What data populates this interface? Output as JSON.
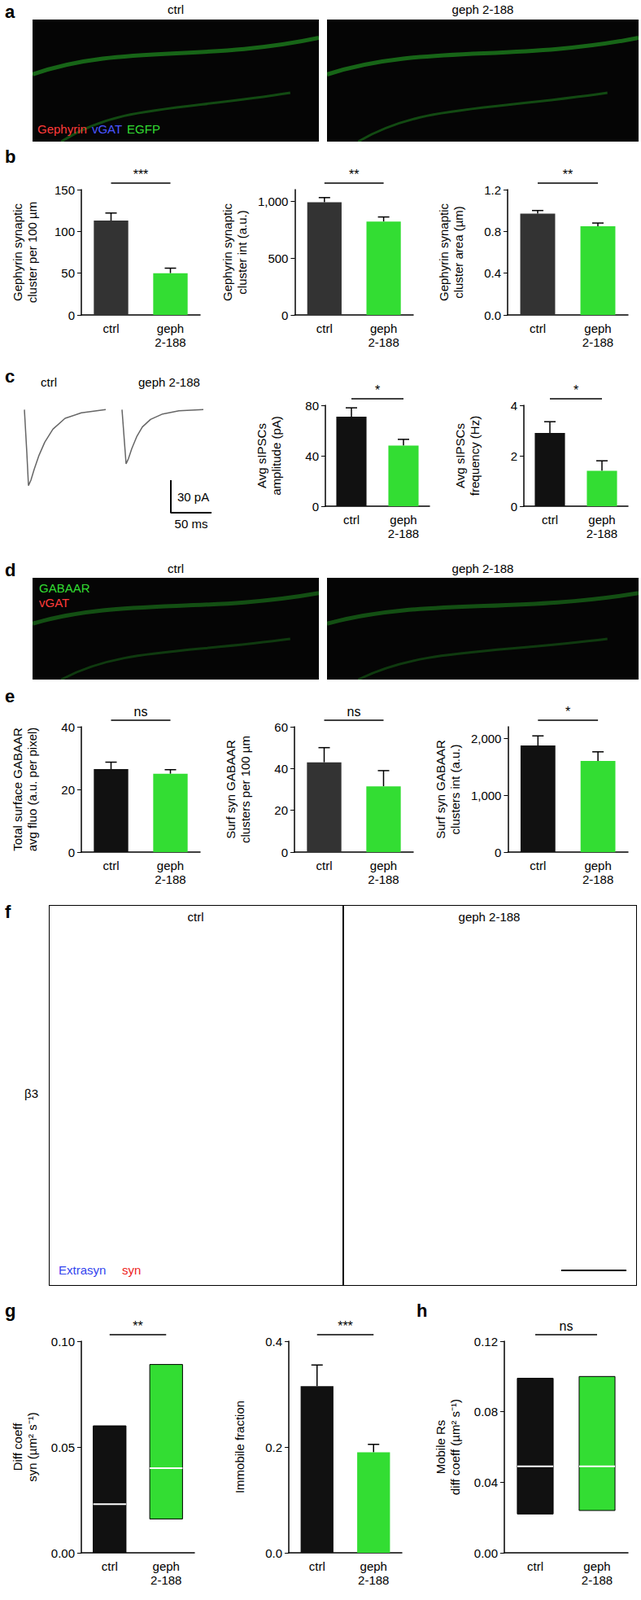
{
  "panel_labels": [
    "a",
    "b",
    "c",
    "d",
    "e",
    "f",
    "g",
    "h"
  ],
  "images": [
    {
      "panel": "a",
      "titles": [
        "ctrl",
        "geph 2-188"
      ],
      "legend": [
        {
          "text": "Gephyrin",
          "color": "#ff3b3b"
        },
        {
          "text": "vGAT",
          "color": "#4a55ff"
        },
        {
          "text": "EGFP",
          "color": "#33dd33"
        }
      ]
    },
    {
      "panel": "d",
      "titles": [
        "ctrl",
        "geph 2-188"
      ],
      "legend": [
        {
          "text": "GABAAR",
          "color": "#33dd33"
        },
        {
          "text": "vGAT",
          "color": "#ff3b3b"
        }
      ]
    },
    {
      "panel": "f",
      "titles": [
        "ctrl",
        "geph 2-188"
      ],
      "row_label": "β3",
      "legend": [
        {
          "text": "Extrasyn",
          "color": "#3344ee"
        },
        {
          "text": "syn",
          "color": "#ee2222"
        }
      ]
    }
  ],
  "chart_data": [
    {
      "type": "bar",
      "ylabel": "Gephyrin synaptic\ncluster per 100 µm",
      "categories": [
        "ctrl",
        "geph\n2-188"
      ],
      "values": [
        113,
        50
      ],
      "errors": [
        9,
        6
      ],
      "colors": [
        "#333333",
        "#33dd33"
      ],
      "ylim": [
        0,
        150
      ],
      "yticks": [
        0,
        50,
        100,
        150
      ],
      "annotation": "***"
    },
    {
      "type": "bar",
      "ylabel": "Gephyrin synaptic\ncluster int (a.u.)",
      "categories": [
        "ctrl",
        "geph\n2-188"
      ],
      "values": [
        990,
        820
      ],
      "errors": [
        40,
        40
      ],
      "colors": [
        "#333333",
        "#33dd33"
      ],
      "ylim": [
        0,
        1100
      ],
      "yticks": [
        0,
        500,
        {
          "value": 1000,
          "label": "1,000"
        }
      ],
      "annotation": "**"
    },
    {
      "type": "bar",
      "ylabel": "Gephyrin synaptic\ncluster area (µm)",
      "categories": [
        "ctrl",
        "geph\n2-188"
      ],
      "values": [
        0.97,
        0.85
      ],
      "errors": [
        0.03,
        0.03
      ],
      "colors": [
        "#333333",
        "#33dd33"
      ],
      "ylim": [
        0,
        1.2
      ],
      "yticks": [
        {
          "value": 0,
          "label": "0.0"
        },
        0.4,
        0.8,
        1.2
      ],
      "annotation": "**"
    },
    {
      "type": "line",
      "series": [
        {
          "name": "ctrl",
          "color": "#666666",
          "x": [
            0,
            3,
            5,
            8,
            12,
            18,
            25,
            35,
            50,
            70,
            100
          ],
          "values": [
            0,
            -40,
            -70,
            -65,
            -55,
            -42,
            -30,
            -18,
            -8,
            -3,
            0
          ]
        },
        {
          "name": "geph 2-188",
          "color": "#666666",
          "x": [
            0,
            3,
            5,
            8,
            12,
            18,
            25,
            35,
            50,
            70,
            100
          ],
          "values": [
            0,
            -30,
            -50,
            -45,
            -36,
            -25,
            -16,
            -9,
            -4,
            -1,
            0
          ]
        }
      ],
      "xlim": [
        0,
        100
      ],
      "ylim": [
        -80,
        10
      ],
      "tick_labels": false,
      "scale_bar": {
        "y": 30,
        "y_label": "30 pA",
        "x": 50,
        "x_label": "50 ms"
      }
    },
    {
      "type": "bar",
      "ylabel": "Avg sIPSCs\namplitude (pA)",
      "categories": [
        "ctrl",
        "geph\n2-188"
      ],
      "values": [
        71,
        48
      ],
      "errors": [
        7,
        5
      ],
      "colors": [
        "#111111",
        "#33dd33"
      ],
      "ylim": [
        0,
        80
      ],
      "yticks": [
        0,
        40,
        80
      ],
      "annotation": "*"
    },
    {
      "type": "bar",
      "ylabel": "Avg sIPSCs\nfrequency (Hz)",
      "categories": [
        "ctrl",
        "geph\n2-188"
      ],
      "values": [
        2.9,
        1.4
      ],
      "errors": [
        0.45,
        0.4
      ],
      "colors": [
        "#111111",
        "#33dd33"
      ],
      "ylim": [
        0,
        4
      ],
      "yticks": [
        0,
        2,
        4
      ],
      "annotation": "*"
    },
    {
      "type": "bar",
      "ylabel": "Total surface GABAAR\navg fluo (a.u. per pixel)",
      "categories": [
        "ctrl",
        "geph\n2-188"
      ],
      "values": [
        26.5,
        25
      ],
      "errors": [
        2.2,
        1.3
      ],
      "colors": [
        "#111111",
        "#33dd33"
      ],
      "ylim": [
        0,
        40
      ],
      "yticks": [
        0,
        20,
        40
      ],
      "annotation": "ns"
    },
    {
      "type": "bar",
      "ylabel": "Surf syn GABAAR\nclusters per 100 µm",
      "categories": [
        "ctrl",
        "geph\n2-188"
      ],
      "values": [
        43,
        31.5
      ],
      "errors": [
        7,
        7.5
      ],
      "colors": [
        "#333333",
        "#33dd33"
      ],
      "ylim": [
        0,
        60
      ],
      "yticks": [
        0,
        20,
        40,
        60
      ],
      "annotation": "ns"
    },
    {
      "type": "bar",
      "ylabel": "Surf syn GABAAR\nclusters int (a.u.)",
      "categories": [
        "ctrl",
        "geph\n2-188"
      ],
      "values": [
        1870,
        1600
      ],
      "errors": [
        170,
        160
      ],
      "colors": [
        "#111111",
        "#33dd33"
      ],
      "ylim": [
        0,
        2200
      ],
      "yticks": [
        0,
        {
          "value": 1000,
          "label": "1,000"
        },
        {
          "value": 2000,
          "label": "2,000"
        }
      ],
      "annotation": "*"
    },
    {
      "type": "box",
      "ylabel": "Diff coeff\nsyn (µm² s⁻¹)",
      "categories": [
        "ctrl",
        "geph\n2-188"
      ],
      "q1": [
        0.0,
        0.016
      ],
      "median": [
        0.023,
        0.04
      ],
      "q3": [
        0.06,
        0.089
      ],
      "colors": [
        "#111111",
        "#33dd33"
      ],
      "ylim": [
        0,
        0.1
      ],
      "yticks": [
        {
          "value": 0,
          "label": "0.00"
        },
        0.05,
        {
          "value": 0.1,
          "label": "0.10"
        }
      ],
      "annotation": "**"
    },
    {
      "type": "bar",
      "ylabel": "Immobile fraction",
      "categories": [
        "ctrl",
        "geph\n2-188"
      ],
      "values": [
        0.315,
        0.19
      ],
      "errors": [
        0.04,
        0.015
      ],
      "colors": [
        "#111111",
        "#33dd33"
      ],
      "ylim": [
        0,
        0.4
      ],
      "yticks": [
        {
          "value": 0,
          "label": "0.0"
        },
        0.2,
        0.4
      ],
      "annotation": "***"
    },
    {
      "type": "box",
      "ylabel": "Mobile Rs\ndiff coeff (µm² s⁻¹)",
      "categories": [
        "ctrl",
        "geph\n2-188"
      ],
      "q1": [
        0.022,
        0.024
      ],
      "median": [
        0.049,
        0.049
      ],
      "q3": [
        0.099,
        0.1
      ],
      "colors": [
        "#111111",
        "#33dd33"
      ],
      "ylim": [
        0,
        0.12
      ],
      "yticks": [
        {
          "value": 0,
          "label": "0.00"
        },
        0.04,
        0.08,
        0.12
      ],
      "annotation": "ns"
    }
  ]
}
